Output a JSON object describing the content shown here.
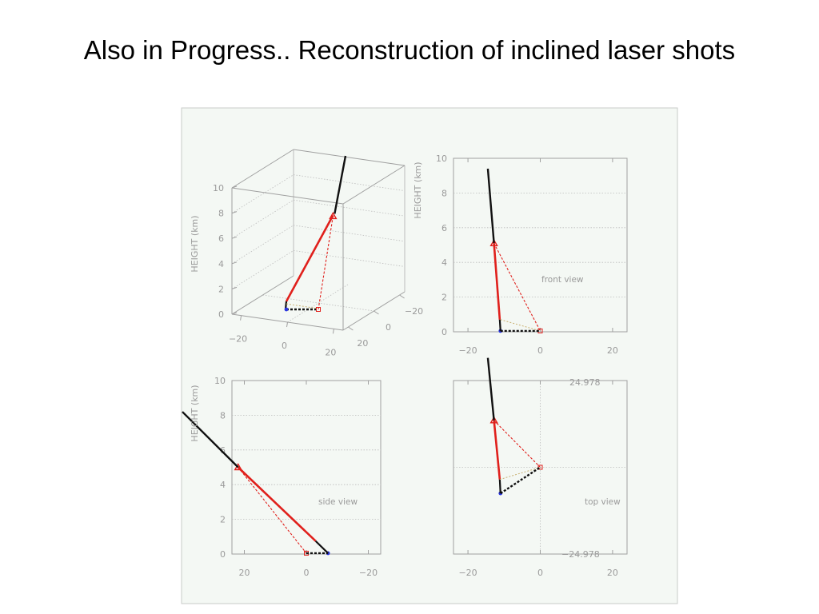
{
  "slide": {
    "title": "Also in Progress.. Reconstruction of inclined laser shots"
  },
  "colors": {
    "panel_bg": "#f4f8f4",
    "panel_border": "#c9cbc9",
    "axis": "#a0a0a0",
    "grid": "#bcbcbc",
    "track_black": "#111111",
    "track_red": "#e0201c",
    "projection_red": "#e0201c",
    "ground_dotted": "#111111",
    "site_blue": "#2a36e0",
    "helper_tan": "#c8b070"
  },
  "chart_data": [
    {
      "panel": "3d",
      "type": "line",
      "ylabel": "HEIGHT (km)",
      "z_ticks": [
        0,
        2,
        4,
        6,
        8,
        10
      ],
      "x_ticks": [
        -20,
        0,
        20
      ],
      "y_ticks": [
        20,
        0,
        -20
      ],
      "x_tick_labels": [
        "−20",
        "0",
        "20"
      ],
      "y_tick_labels": [
        "20",
        "0",
        "−20"
      ],
      "grid": true
    },
    {
      "panel": "front",
      "type": "line",
      "annotation": "front view",
      "ylabel": "HEIGHT (km)",
      "xlim": [
        -24,
        24
      ],
      "ylim": [
        0,
        10
      ],
      "x_ticks": [
        -20,
        0,
        20
      ],
      "x_tick_labels": [
        "−20",
        "0",
        "20"
      ],
      "y_ticks": [
        0,
        2,
        4,
        6,
        8,
        10
      ],
      "grid": true,
      "series": [
        {
          "role": "black-track",
          "x": [
            -14.5,
            -12.8
          ],
          "y": [
            9.4,
            5.1
          ]
        },
        {
          "role": "red-track",
          "x": [
            -12.8,
            -11.2
          ],
          "y": [
            5.1,
            0.7
          ]
        },
        {
          "role": "black-stub",
          "x": [
            -11.2,
            -11.0
          ],
          "y": [
            0.7,
            0.05
          ]
        },
        {
          "role": "red-dashed",
          "x": [
            -12.8,
            0.0
          ],
          "y": [
            5.1,
            0.05
          ]
        },
        {
          "role": "tan-dotted",
          "x": [
            -11.0,
            0.0
          ],
          "y": [
            0.7,
            0.05
          ]
        },
        {
          "role": "black-dotted-ground",
          "x": [
            -11.0,
            0.0
          ],
          "y": [
            0.05,
            0.05
          ]
        }
      ],
      "markers": [
        {
          "symbol": "triangle",
          "x": -12.8,
          "y": 5.1
        },
        {
          "symbol": "blue-dot",
          "x": -11.0,
          "y": 0.05
        },
        {
          "symbol": "red-square",
          "x": 0.0,
          "y": 0.05
        }
      ]
    },
    {
      "panel": "side",
      "type": "line",
      "annotation": "side view",
      "ylabel": "HEIGHT (km)",
      "xlim": [
        24,
        -24
      ],
      "ylim": [
        0,
        10
      ],
      "x_ticks": [
        20,
        0,
        -20
      ],
      "x_tick_labels": [
        "20",
        "0",
        "−20"
      ],
      "y_ticks": [
        0,
        2,
        4,
        6,
        8,
        10
      ],
      "grid": true,
      "series": [
        {
          "role": "black-track",
          "x": [
            40.0,
            22.0
          ],
          "y": [
            8.2,
            5.0
          ]
        },
        {
          "role": "red-track",
          "x": [
            22.0,
            -3.0
          ],
          "y": [
            5.0,
            0.75
          ]
        },
        {
          "role": "black-stub",
          "x": [
            -3.0,
            -7.0
          ],
          "y": [
            0.75,
            0.05
          ]
        },
        {
          "role": "red-dashed",
          "x": [
            22.0,
            0.0
          ],
          "y": [
            5.0,
            0.05
          ]
        },
        {
          "role": "black-dotted-ground",
          "x": [
            0.0,
            -7.0
          ],
          "y": [
            0.05,
            0.05
          ]
        }
      ],
      "markers": [
        {
          "symbol": "triangle",
          "x": 22.0,
          "y": 5.0
        },
        {
          "symbol": "red-square",
          "x": 0.0,
          "y": 0.05
        },
        {
          "symbol": "blue-dot",
          "x": -7.0,
          "y": 0.05
        }
      ]
    },
    {
      "panel": "top",
      "type": "line",
      "annotation": "top view",
      "xlim": [
        -24,
        24
      ],
      "ylim": [
        -24.978,
        24.978
      ],
      "x_ticks": [
        -20,
        0,
        20
      ],
      "x_tick_labels": [
        "−20",
        "0",
        "20"
      ],
      "y_axis_labels": {
        "max": "24.978",
        "min": "−24.978"
      },
      "grid": true,
      "series": [
        {
          "role": "black-track",
          "x": [
            -14.5,
            -12.8
          ],
          "y": [
            31.5,
            13.5
          ]
        },
        {
          "role": "red-track",
          "x": [
            -12.8,
            -11.2
          ],
          "y": [
            13.5,
            -3.5
          ]
        },
        {
          "role": "black-stub",
          "x": [
            -11.2,
            -11.0
          ],
          "y": [
            -3.5,
            -7.5
          ]
        },
        {
          "role": "red-dashed",
          "x": [
            -12.8,
            0.0
          ],
          "y": [
            13.5,
            0.0
          ]
        },
        {
          "role": "tan-dotted",
          "x": [
            -11.2,
            0.0
          ],
          "y": [
            -3.5,
            0.0
          ]
        },
        {
          "role": "black-dotted-ground",
          "x": [
            -11.0,
            0.0
          ],
          "y": [
            -7.5,
            0.0
          ]
        }
      ],
      "markers": [
        {
          "symbol": "triangle",
          "x": -12.8,
          "y": 13.5
        },
        {
          "symbol": "blue-dot",
          "x": -11.0,
          "y": -7.5
        },
        {
          "symbol": "red-square",
          "x": 0.0,
          "y": 0.0
        }
      ]
    }
  ]
}
